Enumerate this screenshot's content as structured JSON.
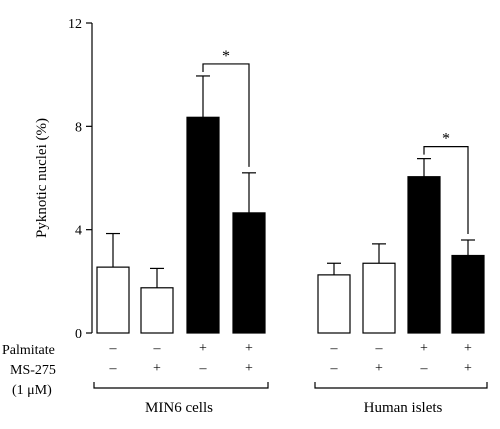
{
  "chart_data": {
    "type": "bar",
    "ylabel": "Pyknotic nuclei (%)",
    "ylim": [
      0,
      12
    ],
    "yticks": [
      0,
      4,
      8,
      12
    ],
    "groups": [
      {
        "name": "MIN6 cells",
        "bars": [
          {
            "palmitate": "–",
            "ms275": "–",
            "value": 2.55,
            "error": 1.3,
            "fill": "white"
          },
          {
            "palmitate": "–",
            "ms275": "+",
            "value": 1.75,
            "error": 0.75,
            "fill": "white"
          },
          {
            "palmitate": "+",
            "ms275": "–",
            "value": 8.35,
            "error": 1.6,
            "fill": "black"
          },
          {
            "palmitate": "+",
            "ms275": "+",
            "value": 4.65,
            "error": 1.55,
            "fill": "black"
          }
        ],
        "significance": {
          "between": [
            2,
            3
          ],
          "label": "*"
        }
      },
      {
        "name": "Human islets",
        "bars": [
          {
            "palmitate": "–",
            "ms275": "–",
            "value": 2.25,
            "error": 0.45,
            "fill": "white"
          },
          {
            "palmitate": "–",
            "ms275": "+",
            "value": 2.7,
            "error": 0.75,
            "fill": "white"
          },
          {
            "palmitate": "+",
            "ms275": "–",
            "value": 6.05,
            "error": 0.7,
            "fill": "black"
          },
          {
            "palmitate": "+",
            "ms275": "+",
            "value": 3.0,
            "error": 0.6,
            "fill": "black"
          }
        ],
        "significance": {
          "between": [
            2,
            3
          ],
          "label": "*"
        }
      }
    ],
    "row_labels": {
      "palmitate": "Palmitate",
      "ms275": "MS-275",
      "ms275_conc": "(1 μM)"
    },
    "colors": {
      "open": "#ffffff",
      "filled": "#000000",
      "stroke": "#000000"
    }
  }
}
